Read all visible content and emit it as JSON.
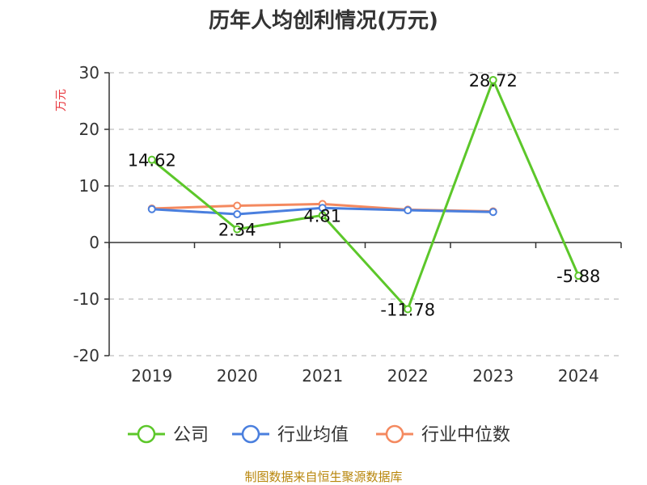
{
  "chart_data": {
    "type": "line",
    "title": "历年人均创利情况(万元)",
    "ylabel": "万元",
    "categories": [
      "2019",
      "2020",
      "2021",
      "2022",
      "2023",
      "2024"
    ],
    "ylim": [
      -20,
      30
    ],
    "yticks": [
      30,
      20,
      10,
      0,
      -10,
      -20
    ],
    "grid": true,
    "legend_position": "bottom",
    "series": [
      {
        "name": "公司",
        "color": "#5cc72a",
        "values": [
          14.62,
          2.34,
          4.81,
          -11.78,
          28.72,
          -5.88
        ],
        "labels": [
          "14.62",
          "2.34",
          "4.81",
          "-11.78",
          "28.72",
          "-5.88"
        ]
      },
      {
        "name": "行业均值",
        "color": "#4a7fde",
        "values": [
          5.9,
          5.0,
          6.1,
          5.7,
          5.4,
          null
        ]
      },
      {
        "name": "行业中位数",
        "color": "#f4895f",
        "values": [
          6.0,
          6.5,
          6.8,
          5.8,
          5.5,
          null
        ]
      }
    ],
    "source": "制图数据来自恒生聚源数据库"
  }
}
